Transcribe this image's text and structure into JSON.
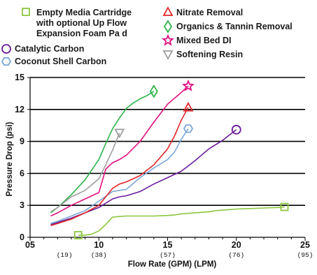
{
  "chart_data": {
    "type": "line",
    "title": "",
    "xlabel": "Flow Rate (GPM) (LPM)",
    "ylabel": "Pressure Drop (psi)",
    "xlim": [
      5,
      25
    ],
    "ylim": [
      0,
      15
    ],
    "x_ticks": [
      {
        "value": 5,
        "label": "05",
        "sub": ""
      },
      {
        "value": 10,
        "label": "10",
        "sub": "(38)"
      },
      {
        "value": 15,
        "label": "15",
        "sub": "(57)"
      },
      {
        "value": 20,
        "label": "20",
        "sub": "(76)"
      },
      {
        "value": 25,
        "label": "25",
        "sub": "(95)"
      }
    ],
    "x_sub_ticks": [
      {
        "value": 7.5,
        "sub": "(19)"
      }
    ],
    "y_ticks": [
      {
        "value": 0,
        "label": "0"
      },
      {
        "value": 3,
        "label": "3"
      },
      {
        "value": 6,
        "label": "6"
      },
      {
        "value": 9,
        "label": "9"
      },
      {
        "value": 12,
        "label": "12"
      },
      {
        "value": 15,
        "label": "15"
      }
    ],
    "grid": "horizontal lines at 3, 6, 9, 12, 15",
    "legend_position": "top",
    "series": [
      {
        "name": "Empty Media Cartridge with optional Up Flow Expansion Foam Pa d",
        "legend_lines": [
          "Empty Media Cartridge",
          "with optional Up Flow",
          "Expansion Foam Pa  d"
        ],
        "color": "#8cc63f",
        "marker": "square",
        "marker_at": "both",
        "x": [
          8.5,
          9.0,
          9.5,
          10.0,
          10.5,
          11.0,
          11.5,
          12.0,
          12.5,
          13.0,
          14.0,
          15.0,
          15.5,
          16.0,
          17.0,
          18.0,
          18.5,
          19.0,
          19.5,
          20.0,
          21.0,
          22.0,
          23.0,
          23.5
        ],
        "y": [
          0.2,
          0.2,
          0.3,
          0.6,
          1.2,
          1.9,
          1.95,
          2.0,
          2.0,
          2.0,
          2.0,
          2.05,
          2.1,
          2.2,
          2.3,
          2.4,
          2.5,
          2.55,
          2.6,
          2.65,
          2.7,
          2.75,
          2.8,
          2.85
        ]
      },
      {
        "name": "Catalytic Carbon",
        "color": "#6a1b9a",
        "marker": "circle",
        "marker_at": "end",
        "x": [
          6.5,
          7.0,
          8.0,
          9.0,
          10.0,
          11.0,
          11.5,
          12.0,
          13.0,
          14.0,
          15.0,
          16.0,
          16.5,
          17.0,
          18.0,
          19.0,
          19.5,
          20.0
        ],
        "y": [
          1.2,
          1.4,
          1.8,
          2.3,
          2.8,
          3.6,
          3.8,
          3.9,
          4.3,
          5.0,
          5.6,
          6.2,
          6.7,
          7.2,
          8.3,
          9.1,
          9.6,
          10.1
        ]
      },
      {
        "name": "Coconut Shell Carbon",
        "color": "#7ba7d9",
        "marker": "hexagon",
        "marker_at": "end",
        "x": [
          6.5,
          7.0,
          8.0,
          9.0,
          10.0,
          11.0,
          11.5,
          12.0,
          13.0,
          14.0,
          15.0,
          15.5,
          16.0,
          16.5
        ],
        "y": [
          1.3,
          1.5,
          2.0,
          2.5,
          3.4,
          4.3,
          4.4,
          4.5,
          5.6,
          6.5,
          7.3,
          8.0,
          9.2,
          10.2
        ]
      },
      {
        "name": "Nitrate Removal",
        "color": "#e0262a",
        "marker": "triangle-up",
        "marker_at": "end",
        "x": [
          6.5,
          7.0,
          8.0,
          9.0,
          10.0,
          11.0,
          11.5,
          12.0,
          13.0,
          14.0,
          15.0,
          15.5,
          16.0,
          16.5
        ],
        "y": [
          1.1,
          1.3,
          1.7,
          2.3,
          3.0,
          4.6,
          5.0,
          5.2,
          5.8,
          6.8,
          8.3,
          9.5,
          11.0,
          12.2
        ]
      },
      {
        "name": "Organics & Tannin Removal",
        "color": "#2db34a",
        "marker": "diamond",
        "marker_at": "end",
        "x": [
          6.5,
          7.0,
          8.0,
          9.0,
          10.0,
          10.5,
          11.0,
          11.5,
          12.0,
          12.5,
          13.0,
          13.5,
          14.0
        ],
        "y": [
          2.3,
          2.8,
          4.0,
          5.4,
          7.3,
          8.8,
          10.2,
          11.2,
          12.1,
          12.6,
          13.0,
          13.3,
          13.7
        ]
      },
      {
        "name": "Mixed Bed DI",
        "color": "#e0117f",
        "marker": "star",
        "marker_at": "end",
        "x": [
          6.5,
          7.0,
          8.0,
          9.0,
          10.0,
          10.5,
          11.0,
          11.5,
          12.0,
          13.0,
          14.0,
          15.0,
          16.0,
          16.5
        ],
        "y": [
          2.0,
          2.3,
          3.0,
          3.6,
          4.2,
          6.4,
          7.0,
          7.3,
          7.7,
          9.0,
          10.8,
          12.5,
          13.6,
          14.2
        ]
      },
      {
        "name": "Softening Resin",
        "color": "#9e9e9e",
        "marker": "triangle-down",
        "marker_at": "end",
        "x": [
          6.5,
          7.0,
          8.0,
          9.0,
          10.0,
          10.5,
          11.0,
          11.5
        ],
        "y": [
          2.4,
          2.8,
          3.8,
          4.4,
          5.5,
          6.8,
          8.2,
          9.8
        ]
      }
    ]
  }
}
